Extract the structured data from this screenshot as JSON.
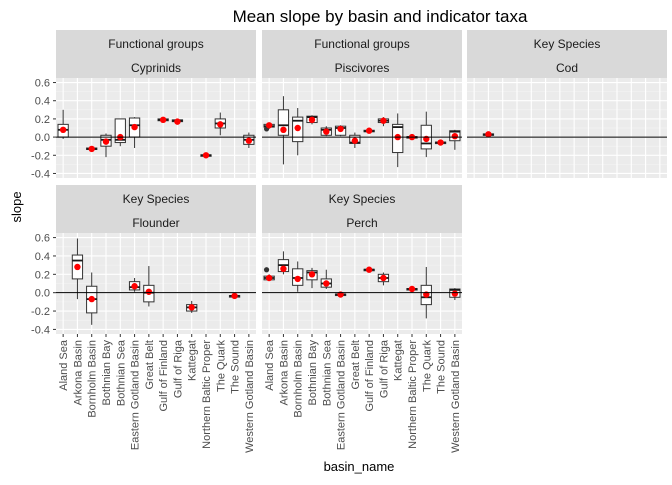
{
  "chart_data": {
    "type": "box",
    "title": "Mean slope by basin and indicator taxa",
    "xlabel": "basin_name",
    "ylabel": "slope",
    "ylim": [
      -0.45,
      0.65
    ],
    "yticks": [
      -0.4,
      -0.2,
      0.0,
      0.2,
      0.4,
      0.6
    ],
    "ytick_labels": [
      "-0.4",
      "-0.2",
      "0.0",
      "0.2",
      "0.4",
      "0.6"
    ],
    "hline": 0,
    "grid": true,
    "mean_color": "#ff0000",
    "outlier_color": "#333333",
    "categories": [
      "Aland Sea",
      "Arkona Basin",
      "Bornholm Basin",
      "Bothnian Bay",
      "Bothnian Sea",
      "Eastern Gotland Basin",
      "Great Belt",
      "Gulf of Finland",
      "Gulf of Riga",
      "Kattegat",
      "Northern Baltic Proper",
      "The Quark",
      "The Sound",
      "Western Gotland Basin"
    ],
    "panels": [
      {
        "strip": [
          "Functional groups",
          "Cyprinids"
        ],
        "boxes": [
          {
            "basin": "Aland Sea",
            "min": -0.02,
            "q1": 0.0,
            "median": 0.08,
            "q3": 0.14,
            "max": 0.3,
            "mean": 0.08
          },
          {
            "basin": "Bornholm Basin",
            "min": -0.14,
            "q1": -0.13,
            "median": -0.13,
            "q3": -0.12,
            "max": -0.11,
            "mean": -0.13
          },
          {
            "basin": "Bothnian Bay",
            "min": -0.22,
            "q1": -0.1,
            "median": -0.03,
            "q3": 0.02,
            "max": 0.04,
            "mean": -0.05
          },
          {
            "basin": "Bothnian Sea",
            "min": -0.1,
            "q1": -0.06,
            "median": -0.03,
            "q3": 0.2,
            "max": 0.2,
            "mean": 0.0
          },
          {
            "basin": "Eastern Gotland Basin",
            "min": -0.12,
            "q1": 0.0,
            "median": 0.13,
            "q3": 0.21,
            "max": 0.22,
            "mean": 0.11
          },
          {
            "basin": "Gulf of Finland",
            "min": 0.17,
            "q1": 0.18,
            "median": 0.19,
            "q3": 0.2,
            "max": 0.2,
            "mean": 0.19
          },
          {
            "basin": "Gulf of Riga",
            "min": 0.16,
            "q1": 0.17,
            "median": 0.18,
            "q3": 0.19,
            "max": 0.19,
            "mean": 0.17
          },
          {
            "basin": "Northern Baltic Proper",
            "min": -0.21,
            "q1": -0.205,
            "median": -0.2,
            "q3": -0.195,
            "max": -0.19,
            "mean": -0.2
          },
          {
            "basin": "The Quark",
            "min": 0.02,
            "q1": 0.1,
            "median": 0.15,
            "q3": 0.2,
            "max": 0.27,
            "mean": 0.14
          },
          {
            "basin": "Western Gotland Basin",
            "min": -0.12,
            "q1": -0.08,
            "median": -0.03,
            "q3": 0.02,
            "max": 0.05,
            "mean": -0.04
          }
        ]
      },
      {
        "strip": [
          "Functional groups",
          "Piscivores"
        ],
        "boxes": [
          {
            "basin": "Aland Sea",
            "min": 0.09,
            "q1": 0.11,
            "median": 0.12,
            "q3": 0.14,
            "max": 0.15,
            "mean": 0.13,
            "outliers": [
              0.09
            ]
          },
          {
            "basin": "Arkona Basin",
            "min": -0.3,
            "q1": 0.02,
            "median": 0.13,
            "q3": 0.3,
            "max": 0.45,
            "mean": 0.08
          },
          {
            "basin": "Bornholm Basin",
            "min": -0.2,
            "q1": -0.05,
            "median": 0.18,
            "q3": 0.22,
            "max": 0.32,
            "mean": 0.1
          },
          {
            "basin": "Bothnian Bay",
            "min": 0.14,
            "q1": 0.16,
            "median": 0.22,
            "q3": 0.23,
            "max": 0.24,
            "mean": 0.19
          },
          {
            "basin": "Bothnian Sea",
            "min": 0.01,
            "q1": 0.02,
            "median": 0.08,
            "q3": 0.1,
            "max": 0.12,
            "mean": 0.06
          },
          {
            "basin": "Eastern Gotland Basin",
            "min": 0.01,
            "q1": 0.02,
            "median": 0.1,
            "q3": 0.12,
            "max": 0.13,
            "mean": 0.09
          },
          {
            "basin": "Great Belt",
            "min": -0.12,
            "q1": -0.07,
            "median": -0.06,
            "q3": 0.02,
            "max": 0.05,
            "mean": -0.04
          },
          {
            "basin": "Gulf of Finland",
            "min": 0.05,
            "q1": 0.06,
            "median": 0.065,
            "q3": 0.075,
            "max": 0.08,
            "mean": 0.07
          },
          {
            "basin": "Gulf of Riga",
            "min": 0.12,
            "q1": 0.16,
            "median": 0.18,
            "q3": 0.2,
            "max": 0.22,
            "mean": 0.18
          },
          {
            "basin": "Kattegat",
            "min": -0.33,
            "q1": -0.17,
            "median": 0.11,
            "q3": 0.14,
            "max": 0.26,
            "mean": 0.0
          },
          {
            "basin": "Northern Baltic Proper",
            "min": -0.01,
            "q1": -0.005,
            "median": 0.0,
            "q3": 0.005,
            "max": 0.01,
            "mean": 0.0
          },
          {
            "basin": "The Quark",
            "min": -0.22,
            "q1": -0.13,
            "median": -0.07,
            "q3": 0.13,
            "max": 0.28,
            "mean": -0.02
          },
          {
            "basin": "The Sound",
            "min": -0.07,
            "q1": -0.065,
            "median": -0.06,
            "q3": -0.055,
            "max": -0.05,
            "mean": -0.06
          },
          {
            "basin": "Western Gotland Basin",
            "min": -0.14,
            "q1": -0.04,
            "median": 0.06,
            "q3": 0.07,
            "max": 0.08,
            "mean": 0.01
          }
        ]
      },
      {
        "strip": [
          "Key Species",
          "Cod"
        ],
        "boxes": [
          {
            "basin": "Arkona Basin",
            "min": 0.02,
            "q1": 0.025,
            "median": 0.03,
            "q3": 0.035,
            "max": 0.04,
            "mean": 0.03
          }
        ]
      },
      {
        "strip": [
          "Key Species",
          "Flounder"
        ],
        "boxes": [
          {
            "basin": "Arkona Basin",
            "min": -0.07,
            "q1": 0.15,
            "median": 0.35,
            "q3": 0.41,
            "max": 0.59,
            "mean": 0.28
          },
          {
            "basin": "Bornholm Basin",
            "min": -0.35,
            "q1": -0.22,
            "median": -0.07,
            "q3": 0.07,
            "max": 0.22,
            "mean": -0.07
          },
          {
            "basin": "Eastern Gotland Basin",
            "min": 0.01,
            "q1": 0.03,
            "median": 0.06,
            "q3": 0.12,
            "max": 0.16,
            "mean": 0.07
          },
          {
            "basin": "Great Belt",
            "min": -0.15,
            "q1": -0.1,
            "median": 0.0,
            "q3": 0.08,
            "max": 0.29,
            "mean": 0.01
          },
          {
            "basin": "Kattegat",
            "min": -0.22,
            "q1": -0.2,
            "median": -0.16,
            "q3": -0.13,
            "max": -0.09,
            "mean": -0.16
          },
          {
            "basin": "The Sound",
            "min": -0.04,
            "q1": -0.037,
            "median": -0.035,
            "q3": -0.032,
            "max": -0.03,
            "mean": -0.035
          }
        ]
      },
      {
        "strip": [
          "Key Species",
          "Perch"
        ],
        "boxes": [
          {
            "basin": "Aland Sea",
            "min": 0.13,
            "q1": 0.14,
            "median": 0.16,
            "q3": 0.18,
            "max": 0.2,
            "mean": 0.16,
            "outliers": [
              0.25
            ]
          },
          {
            "basin": "Arkona Basin",
            "min": 0.2,
            "q1": 0.23,
            "median": 0.3,
            "q3": 0.36,
            "max": 0.45,
            "mean": 0.26
          },
          {
            "basin": "Bornholm Basin",
            "min": 0.01,
            "q1": 0.08,
            "median": 0.16,
            "q3": 0.26,
            "max": 0.34,
            "mean": 0.15
          },
          {
            "basin": "Bothnian Bay",
            "min": 0.05,
            "q1": 0.14,
            "median": 0.22,
            "q3": 0.24,
            "max": 0.27,
            "mean": 0.2
          },
          {
            "basin": "Bothnian Sea",
            "min": 0.04,
            "q1": 0.06,
            "median": 0.1,
            "q3": 0.15,
            "max": 0.25,
            "mean": 0.1
          },
          {
            "basin": "Eastern Gotland Basin",
            "min": -0.03,
            "q1": -0.025,
            "median": -0.02,
            "q3": -0.015,
            "max": -0.01,
            "mean": -0.02
          },
          {
            "basin": "Gulf of Finland",
            "min": 0.24,
            "q1": 0.245,
            "median": 0.25,
            "q3": 0.255,
            "max": 0.26,
            "mean": 0.25
          },
          {
            "basin": "Gulf of Riga",
            "min": 0.08,
            "q1": 0.12,
            "median": 0.16,
            "q3": 0.2,
            "max": 0.22,
            "mean": 0.16
          },
          {
            "basin": "Northern Baltic Proper",
            "min": 0.03,
            "q1": 0.035,
            "median": 0.04,
            "q3": 0.045,
            "max": 0.05,
            "mean": 0.04
          },
          {
            "basin": "The Quark",
            "min": -0.28,
            "q1": -0.13,
            "median": -0.05,
            "q3": 0.08,
            "max": 0.28,
            "mean": -0.02
          },
          {
            "basin": "Western Gotland Basin",
            "min": -0.08,
            "q1": -0.05,
            "median": 0.03,
            "q3": 0.04,
            "max": 0.05,
            "mean": -0.01
          }
        ]
      }
    ]
  }
}
